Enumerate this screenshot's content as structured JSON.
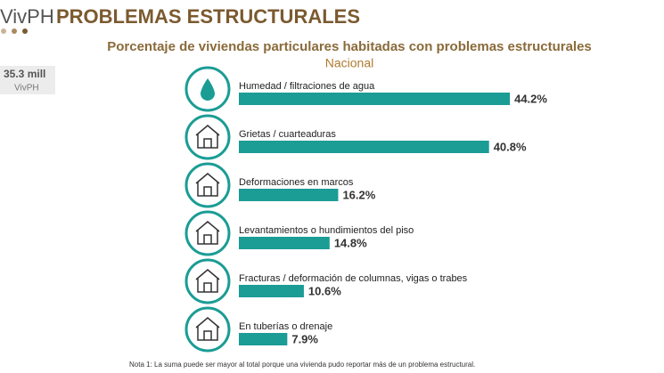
{
  "header": {
    "title_light": "VivPH",
    "title_bold": "PROBLEMAS ESTRUCTURALES"
  },
  "badge": {
    "value": "35.3 mill",
    "label": "VivPH"
  },
  "chart_data": {
    "type": "bar",
    "orientation": "horizontal",
    "title": "Porcentaje de viviendas particulares habitadas con problemas estructurales",
    "subtitle": "Nacional",
    "categories": [
      "Humedad / filtraciones de agua",
      "Grietas / cuarteaduras",
      "Deformaciones en marcos",
      "Levantamientos o hundimientos del piso",
      "Fracturas / deformación de columnas, vigas o trabes",
      "En tuberías o drenaje"
    ],
    "values": [
      44.2,
      40.8,
      16.2,
      14.8,
      10.6,
      7.9
    ],
    "value_labels": [
      "44.2%",
      "40.8%",
      "16.2%",
      "14.8%",
      "10.6%",
      "7.9%"
    ],
    "color": "#1b9c95"
  },
  "note": "Nota 1: La suma puede ser mayor al total porque una vivienda pudo reportar más de un problema estructural."
}
